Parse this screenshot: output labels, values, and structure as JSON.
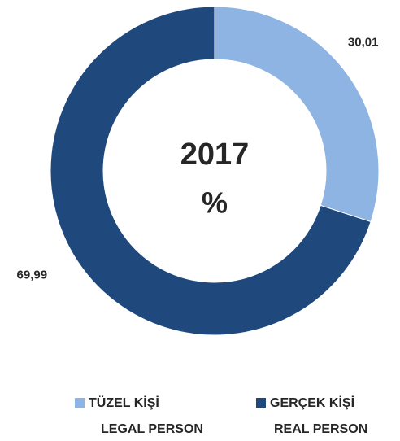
{
  "chart_data": {
    "type": "pie",
    "title": "2017",
    "unit": "%",
    "categories": [
      [
        "TÜZEL KİŞİ",
        "LEGAL PERSON"
      ],
      [
        "GERÇEK KİŞİ",
        "REAL PERSON"
      ]
    ],
    "values": [
      30.01,
      69.99
    ],
    "value_labels": [
      "30,01",
      "69,99"
    ],
    "colors": [
      "#8eb4e3",
      "#1f497d"
    ],
    "donut": true
  }
}
